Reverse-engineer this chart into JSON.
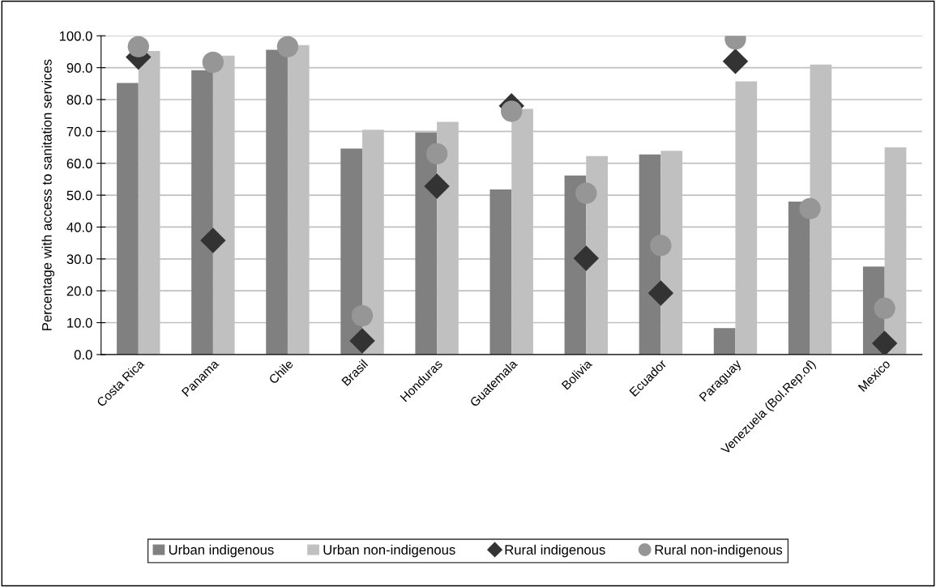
{
  "chart_data": {
    "type": "bar",
    "ylabel": "Percentage with access to sanitation services",
    "categories": [
      "Costa Rica",
      "Panama",
      "Chile",
      "Brasil",
      "Honduras",
      "Guatemala",
      "Bolivia",
      "Ecuador",
      "Paraguay",
      "Venezuela (Bol.Rep.of)",
      "Mexico"
    ],
    "series": [
      {
        "name": "Urban indigenous",
        "color": "#808080",
        "values": [
          85.2,
          89.2,
          95.6,
          64.6,
          69.7,
          51.8,
          56.2,
          62.8,
          8.3,
          48.0,
          27.6
        ]
      },
      {
        "name": "Urban non-indigenous",
        "color": "#c0c0c0",
        "values": [
          95.2,
          93.8,
          97.1,
          70.5,
          73.0,
          77.1,
          62.3,
          63.9,
          85.7,
          91.0,
          65.0
        ]
      },
      {
        "name": "Rural indigenous",
        "type": "scatter",
        "marker": "diamond",
        "color": "#333333",
        "values": [
          93.3,
          35.8,
          null,
          4.3,
          52.8,
          78.0,
          30.2,
          19.3,
          92.0,
          null,
          3.5
        ]
      },
      {
        "name": "Rural non-indigenous",
        "type": "scatter",
        "marker": "circle",
        "color": "#969696",
        "values": [
          96.6,
          91.7,
          96.6,
          12.2,
          63.0,
          76.3,
          50.6,
          34.2,
          99.0,
          45.8,
          14.5
        ]
      }
    ],
    "ylim": [
      0,
      100
    ],
    "yticks": [
      {
        "value": 0,
        "label": "0.0"
      },
      {
        "value": 10,
        "label": "10.0"
      },
      {
        "value": 20,
        "label": "20.0"
      },
      {
        "value": 30,
        "label": "30.0"
      },
      {
        "value": 40,
        "label": "40.0"
      },
      {
        "value": 50,
        "label": "50.0"
      },
      {
        "value": 60,
        "label": "60.0"
      },
      {
        "value": 70,
        "label": "70.0"
      },
      {
        "value": 80,
        "label": "80.0"
      },
      {
        "value": 90,
        "label": "90.0"
      },
      {
        "value": 100,
        "label": "100.0"
      }
    ],
    "grid": "y",
    "legend": "bottom"
  }
}
